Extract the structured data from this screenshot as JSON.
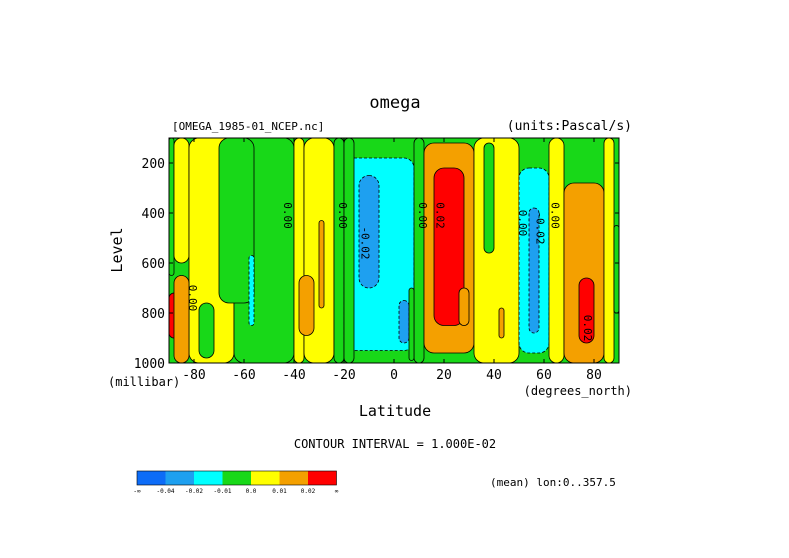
{
  "chart_data": {
    "type": "heatmap",
    "title": "omega",
    "source_label": "[OMEGA_1985-01_NCEP.nc]",
    "units_label": "(units:Pascal/s)",
    "xlabel": "Latitude",
    "x_unit_label": "(degrees_north)",
    "ylabel": "Level",
    "y_unit_label": "(millibar)",
    "xlim": [
      -90,
      90
    ],
    "ylim": [
      1000,
      100
    ],
    "x_ticks": [
      -80,
      -60,
      -40,
      -20,
      0,
      20,
      40,
      60,
      80
    ],
    "y_ticks": [
      200,
      400,
      600,
      800,
      1000
    ],
    "x_tick_labels": [
      "-80",
      "-60",
      "-40",
      "-20",
      "0",
      "20",
      "40",
      "60",
      "80"
    ],
    "y_tick_labels": [
      "200",
      "400",
      "600",
      "800",
      "1000"
    ],
    "contour_interval_text": "CONTOUR INTERVAL = 1.000E-02",
    "mean_text": "(mean) lon:0..357.5",
    "contour_labels": [
      {
        "text": "0.00",
        "lat": -82,
        "level": 740
      },
      {
        "text": "0.00",
        "lat": -44,
        "level": 410
      },
      {
        "text": "0.00",
        "lat": -22,
        "level": 410
      },
      {
        "text": "-0.02",
        "lat": -13,
        "level": 520
      },
      {
        "text": "0.00",
        "lat": 10,
        "level": 410
      },
      {
        "text": "0.02",
        "lat": 17,
        "level": 410
      },
      {
        "text": "0.00",
        "lat": 50,
        "level": 440
      },
      {
        "text": "-0.02",
        "lat": 57,
        "level": 460
      },
      {
        "text": "0.00",
        "lat": 63,
        "level": 410
      },
      {
        "text": "0.02",
        "lat": 76,
        "level": 860
      }
    ],
    "levels": [
      -0.04,
      -0.02,
      -0.01,
      0.0,
      0.01,
      0.02
    ],
    "colorbar": {
      "colors": [
        "#0d6cf7",
        "#1ea0f0",
        "#00ffff",
        "#18d818",
        "#ffff00",
        "#f4a000",
        "#ff0000"
      ],
      "labels": [
        "-∞",
        "-0.04",
        "-0.02",
        "-0.01",
        "0.0",
        "0.01",
        "0.02",
        "∞"
      ]
    },
    "bands": [
      {
        "class": 3,
        "lat": [
          -90,
          -88
        ],
        "level": [
          100,
          650
        ]
      },
      {
        "class": 4,
        "lat": [
          -88,
          -82
        ],
        "level": [
          100,
          600
        ]
      },
      {
        "class": 4,
        "lat": [
          -82,
          -64
        ],
        "level": [
          100,
          1000
        ]
      },
      {
        "class": 3,
        "lat": [
          -64,
          -40
        ],
        "level": [
          100,
          1000
        ]
      },
      {
        "class": 4,
        "lat": [
          -40,
          -36
        ],
        "level": [
          100,
          1000
        ]
      },
      {
        "class": 4,
        "lat": [
          -36,
          -24
        ],
        "level": [
          100,
          1000
        ]
      },
      {
        "class": 3,
        "lat": [
          -24,
          -20
        ],
        "level": [
          100,
          1000
        ]
      },
      {
        "class": 2,
        "lat": [
          -20,
          8
        ],
        "level": [
          180,
          950
        ]
      },
      {
        "class": 3,
        "lat": [
          8,
          12
        ],
        "level": [
          100,
          1000
        ]
      },
      {
        "class": 5,
        "lat": [
          12,
          32
        ],
        "level": [
          120,
          960
        ]
      },
      {
        "class": 4,
        "lat": [
          32,
          50
        ],
        "level": [
          100,
          1000
        ]
      },
      {
        "class": 2,
        "lat": [
          50,
          62
        ],
        "level": [
          220,
          960
        ]
      },
      {
        "class": 4,
        "lat": [
          62,
          68
        ],
        "level": [
          100,
          1000
        ]
      },
      {
        "class": 5,
        "lat": [
          68,
          84
        ],
        "level": [
          280,
          1000
        ]
      },
      {
        "class": 4,
        "lat": [
          84,
          88
        ],
        "level": [
          100,
          1000
        ]
      },
      {
        "class": 3,
        "lat": [
          88,
          90
        ],
        "level": [
          450,
          800
        ]
      }
    ],
    "regions": [
      {
        "class": 6,
        "lat": [
          -90,
          -86
        ],
        "level": [
          720,
          900
        ]
      },
      {
        "class": 6,
        "lat": [
          -86,
          -84
        ],
        "level": [
          800,
          1000
        ]
      },
      {
        "class": 5,
        "lat": [
          -88,
          -82
        ],
        "level": [
          650,
          1000
        ]
      },
      {
        "class": 3,
        "lat": [
          -78,
          -72
        ],
        "level": [
          760,
          980
        ]
      },
      {
        "class": 3,
        "lat": [
          -70,
          -56
        ],
        "level": [
          100,
          760
        ]
      },
      {
        "class": 2,
        "lat": [
          -58,
          -56
        ],
        "level": [
          570,
          850
        ]
      },
      {
        "class": 5,
        "lat": [
          -38,
          -32
        ],
        "level": [
          650,
          890
        ]
      },
      {
        "class": 5,
        "lat": [
          -30,
          -28
        ],
        "level": [
          430,
          780
        ]
      },
      {
        "class": 3,
        "lat": [
          -20,
          -16
        ],
        "level": [
          100,
          1000
        ]
      },
      {
        "class": 1,
        "lat": [
          -14,
          -6
        ],
        "level": [
          250,
          700
        ]
      },
      {
        "class": 1,
        "lat": [
          2,
          6
        ],
        "level": [
          750,
          920
        ]
      },
      {
        "class": 3,
        "lat": [
          6,
          8
        ],
        "level": [
          700,
          990
        ]
      },
      {
        "class": 6,
        "lat": [
          16,
          28
        ],
        "level": [
          220,
          850
        ]
      },
      {
        "class": 5,
        "lat": [
          26,
          30
        ],
        "level": [
          700,
          850
        ]
      },
      {
        "class": 3,
        "lat": [
          36,
          40
        ],
        "level": [
          120,
          560
        ]
      },
      {
        "class": 5,
        "lat": [
          42,
          44
        ],
        "level": [
          780,
          900
        ]
      },
      {
        "class": 1,
        "lat": [
          54,
          58
        ],
        "level": [
          380,
          880
        ]
      },
      {
        "class": 6,
        "lat": [
          74,
          80
        ],
        "level": [
          660,
          920
        ]
      },
      {
        "class": 3,
        "lat": [
          88,
          90
        ],
        "level": [
          450,
          800
        ]
      }
    ]
  }
}
